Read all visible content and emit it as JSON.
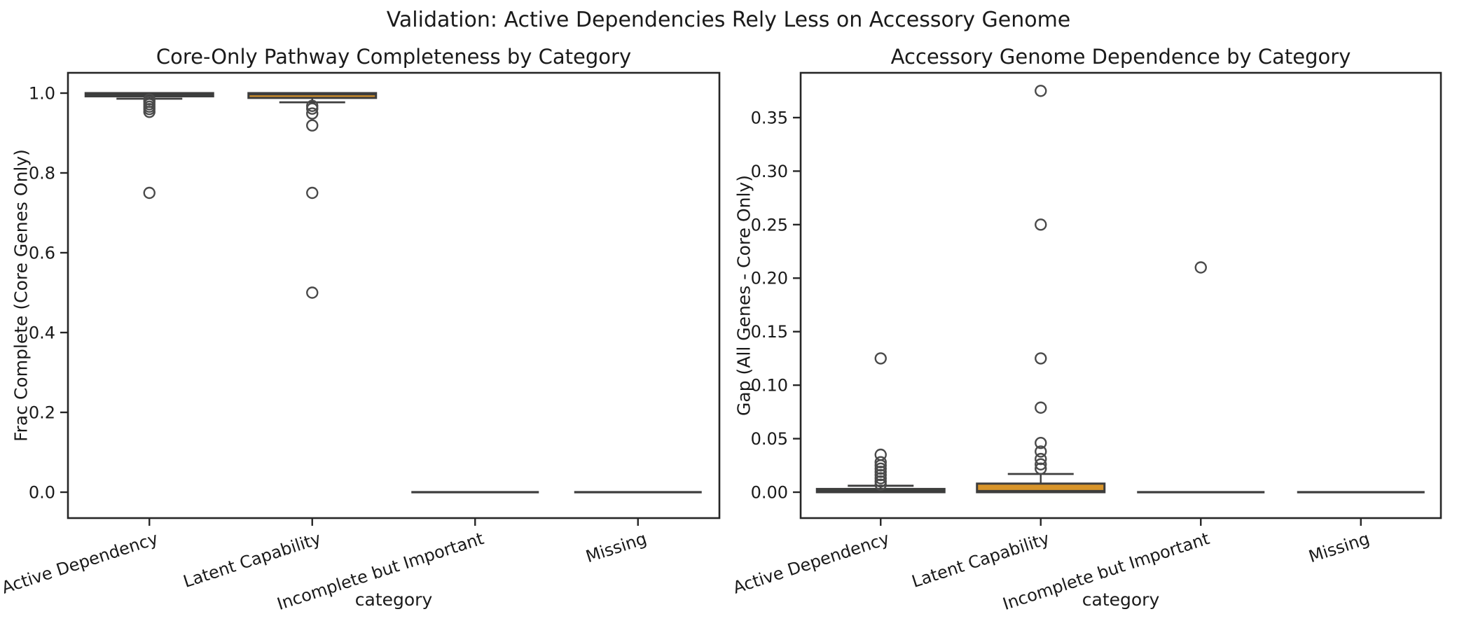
{
  "figure": {
    "suptitle": "Validation: Active Dependencies Rely Less on Accessory Genome",
    "background": "#ffffff"
  },
  "colors": {
    "active_dependency_fill": "#48A768",
    "latent_capability_fill": "#D8942A",
    "collapsed_fill": "#999999",
    "box_edge": "#3D3D3D",
    "median_line": "#3D3D3D",
    "whisker": "#3D3D3D",
    "flier_edge": "#4A4A4A",
    "spine": "#262626",
    "text": "#1A1A1A"
  },
  "chart_data": [
    {
      "type": "box",
      "title": "Core-Only Pathway Completeness by Category",
      "xlabel": "category",
      "ylabel": "Frac Complete (Core Genes Only)",
      "categories": [
        "Active Dependency",
        "Latent Capability",
        "Incomplete but Important",
        "Missing"
      ],
      "ylim": [
        -0.065,
        1.05
      ],
      "grid": false,
      "legend": "none",
      "yticks": {
        "values": [
          0.0,
          0.2,
          0.4,
          0.6,
          0.8,
          1.0
        ],
        "labels": [
          "0.0",
          "0.2",
          "0.4",
          "0.6",
          "0.8",
          "1.0"
        ]
      },
      "boxes": [
        {
          "category": "Active Dependency",
          "fill_key": "active_dependency_fill",
          "q1": 0.992,
          "median": 0.997,
          "q3": 1.0,
          "whisker_low": 0.986,
          "whisker_high": 1.0,
          "outliers": [
            0.984,
            0.978,
            0.972,
            0.966,
            0.96,
            0.953,
            0.75
          ]
        },
        {
          "category": "Latent Capability",
          "fill_key": "latent_capability_fill",
          "q1": 0.988,
          "median": 0.997,
          "q3": 1.0,
          "whisker_low": 0.977,
          "whisker_high": 1.0,
          "outliers": [
            0.968,
            0.961,
            0.949,
            0.919,
            0.75,
            0.5
          ]
        },
        {
          "category": "Incomplete but Important",
          "fill_key": "collapsed_fill",
          "q1": 0.0,
          "median": 0.0,
          "q3": 0.0,
          "whisker_low": 0.0,
          "whisker_high": 0.0,
          "outliers": []
        },
        {
          "category": "Missing",
          "fill_key": "collapsed_fill",
          "q1": 0.0,
          "median": 0.0,
          "q3": 0.0,
          "whisker_low": 0.0,
          "whisker_high": 0.0,
          "outliers": []
        }
      ]
    },
    {
      "type": "box",
      "title": "Accessory Genome Dependence by Category",
      "xlabel": "category",
      "ylabel": "Gap (All Genes - Core Only)",
      "categories": [
        "Active Dependency",
        "Latent Capability",
        "Incomplete but Important",
        "Missing"
      ],
      "ylim": [
        -0.022,
        0.39
      ],
      "grid": false,
      "legend": "none",
      "yticks": {
        "values": [
          0.0,
          0.05,
          0.1,
          0.15,
          0.2,
          0.25,
          0.3,
          0.35
        ],
        "labels": [
          "0.00",
          "0.05",
          "0.10",
          "0.15",
          "0.20",
          "0.25",
          "0.30",
          "0.35"
        ]
      },
      "boxes": [
        {
          "category": "Active Dependency",
          "fill_key": "active_dependency_fill",
          "q1": 0.0,
          "median": 0.001,
          "q3": 0.003,
          "whisker_low": 0.0,
          "whisker_high": 0.006,
          "outliers": [
            0.007,
            0.01,
            0.013,
            0.016,
            0.019,
            0.022,
            0.025,
            0.028,
            0.035,
            0.125
          ]
        },
        {
          "category": "Latent Capability",
          "fill_key": "latent_capability_fill",
          "q1": 0.0,
          "median": 0.001,
          "q3": 0.008,
          "whisker_low": 0.0,
          "whisker_high": 0.017,
          "outliers": [
            0.022,
            0.026,
            0.031,
            0.038,
            0.046,
            0.079,
            0.125,
            0.25,
            0.375
          ]
        },
        {
          "category": "Incomplete but Important",
          "fill_key": "collapsed_fill",
          "q1": 0.0,
          "median": 0.0,
          "q3": 0.0,
          "whisker_low": 0.0,
          "whisker_high": 0.0,
          "outliers": [
            0.21
          ]
        },
        {
          "category": "Missing",
          "fill_key": "collapsed_fill",
          "q1": 0.0,
          "median": 0.0,
          "q3": 0.0,
          "whisker_low": 0.0,
          "whisker_high": 0.0,
          "outliers": []
        }
      ]
    }
  ]
}
